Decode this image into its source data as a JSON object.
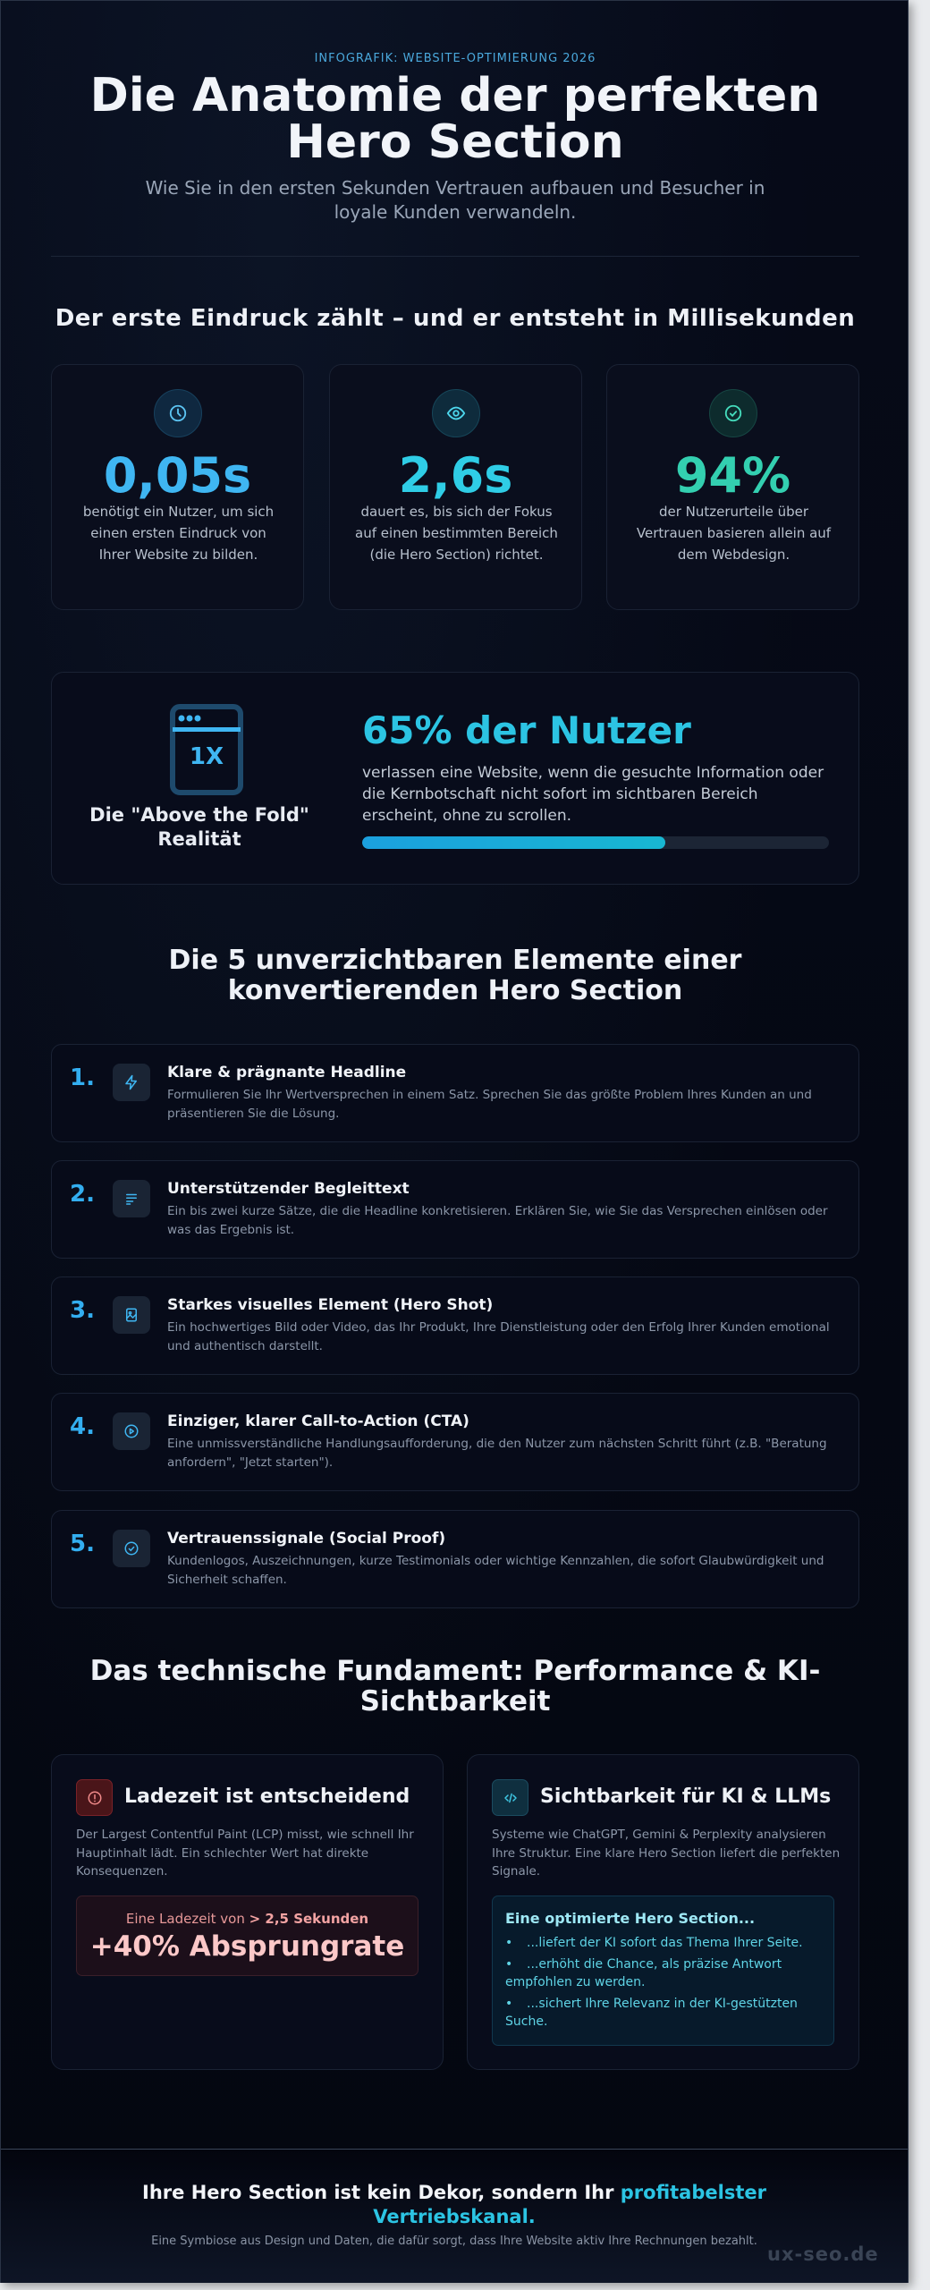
{
  "header": {
    "eyebrow": "INFOGRAFIK: WEBSITE-OPTIMIERUNG 2026",
    "title_line1": "Die Anatomie der perfekten",
    "title_line2": "Hero Section",
    "subtitle": "Wie Sie in den ersten Sekunden Vertrauen aufbauen und Besucher in loyale Kunden verwandeln."
  },
  "first_impression": {
    "title": "Der erste Eindruck zählt – und er entsteht in Millisekunden",
    "stats": [
      {
        "icon": "clock-icon",
        "value": "0,05s",
        "color": "#3fb6f2",
        "description": "benötigt ein Nutzer, um sich einen ersten Eindruck von Ihrer Website zu bilden."
      },
      {
        "icon": "eye-icon",
        "value": "2,6s",
        "color": "#2fcde6",
        "description": "dauert es, bis sich der Fokus auf einen bestimmten Bereich (die Hero Section) richtet."
      },
      {
        "icon": "check-circle-icon",
        "value": "94%",
        "color": "#33cfb0",
        "description": "der Nutzerurteile über Vertrauen basieren allein auf dem Webdesign."
      }
    ]
  },
  "above_the_fold": {
    "icon": "browser-window-1x-icon",
    "icon_text": "1X",
    "label": "Die \"Above the Fold\" Realität",
    "heading": "65% der Nutzer",
    "text": "verlassen eine Website, wenn die gesuchte Information oder die Kernbotschaft nicht sofort im sichtbaren Bereich erscheint, ohne zu scrollen.",
    "progress_percent": 65
  },
  "elements": {
    "title_line1": "Die 5 unverzichtbaren Elemente einer",
    "title_line2": "konvertierenden Hero Section",
    "items": [
      {
        "number": "1.",
        "icon": "lightning-icon",
        "title": "Klare & prägnante Headline",
        "description": "Formulieren Sie Ihr Wertversprechen in einem Satz. Sprechen Sie das größte Problem Ihres Kunden an und präsentieren Sie die Lösung."
      },
      {
        "number": "2.",
        "icon": "text-lines-icon",
        "title": "Unterstützender Begleittext",
        "description": "Ein bis zwei kurze Sätze, die die Headline konkretisieren. Erklären Sie, wie Sie das Versprechen einlösen oder was das Ergebnis ist."
      },
      {
        "number": "3.",
        "icon": "image-icon",
        "title": "Starkes visuelles Element (Hero Shot)",
        "description": "Ein hochwertiges Bild oder Video, das Ihr Produkt, Ihre Dienstleistung oder den Erfolg Ihrer Kunden emotional und authentisch darstellt."
      },
      {
        "number": "4.",
        "icon": "play-circle-icon",
        "title": "Einziger, klarer Call-to-Action (CTA)",
        "description": "Eine unmissverständliche Handlungsaufforderung, die den Nutzer zum nächsten Schritt führt (z.B. \"Beratung anfordern\", \"Jetzt starten\")."
      },
      {
        "number": "5.",
        "icon": "check-circle-icon",
        "title": "Vertrauenssignale (Social Proof)",
        "description": "Kundenlogos, Auszeichnungen, kurze Testimonials oder wichtige Kennzahlen, die sofort Glaubwürdigkeit und Sicherheit schaffen."
      }
    ]
  },
  "technical": {
    "title_line1": "Das technische Fundament: Performance & KI-",
    "title_line2": "Sichtbarkeit",
    "load_card": {
      "icon": "alert-circle-icon",
      "title": "Ladezeit ist entscheidend",
      "description": "Der Largest Contentful Paint (LCP) misst, wie schnell Ihr Hauptinhalt lädt. Ein schlechter Wert hat direkte Konsequenzen.",
      "warning_prefix": "Eine Ladezeit von ",
      "warning_threshold": "> 2,5 Sekunden",
      "warning_result": "+40% Absprungrate"
    },
    "ai_card": {
      "icon": "code-icon",
      "title": "Sichtbarkeit für KI & LLMs",
      "description": "Systeme wie ChatGPT, Gemini & Perplexity analysieren Ihre Struktur. Eine klare Hero Section liefert die perfekten Signale.",
      "box_title": "Eine optimierte Hero Section...",
      "bullets": [
        "...liefert der KI sofort das Thema Ihrer Seite.",
        "...erhöht die Chance, als präzise Antwort empfohlen zu werden.",
        "...sichert Ihre Relevanz in der KI-gestützten Suche."
      ]
    }
  },
  "footer": {
    "headline_prefix": "Ihre Hero Section ist kein Dekor, sondern Ihr ",
    "headline_accent": "profitabelster Vertriebskanal.",
    "subline": "Eine Symbiose aus Design und Daten, die dafür sorgt, dass Ihre Website aktiv Ihre Rechnungen bezahlt.",
    "watermark": "ux-seo.de"
  },
  "colors": {
    "background": "#050814",
    "accent_blue": "#33aef0",
    "accent_cyan": "#2cc4e3",
    "accent_teal": "#33cfb0",
    "warning_red": "#e89999"
  }
}
